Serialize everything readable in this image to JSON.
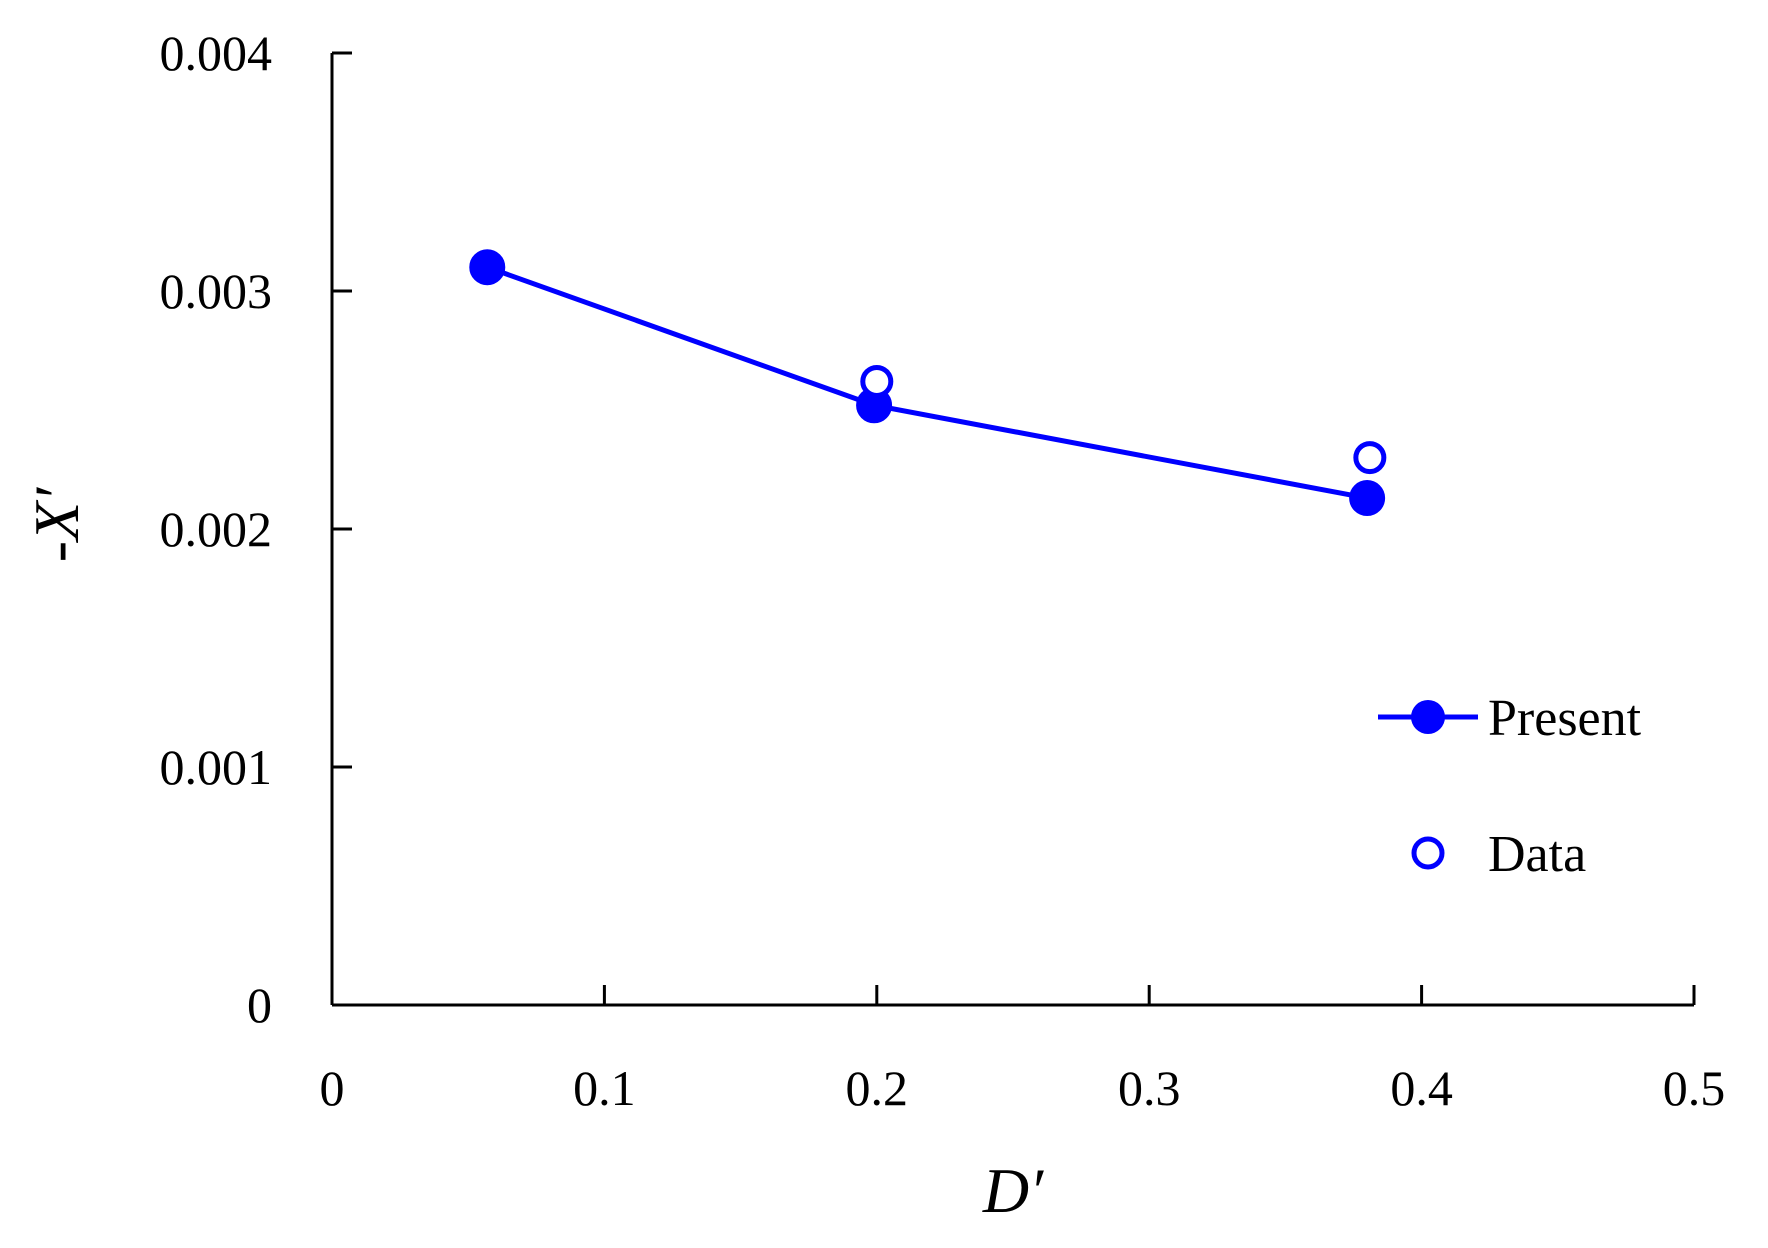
{
  "chart_data": {
    "type": "line",
    "title": "",
    "xlabel": "D′",
    "ylabel": "-X′",
    "xlim": [
      0,
      0.5
    ],
    "ylim": [
      0,
      0.004
    ],
    "x_ticks": [
      0,
      0.1,
      0.2,
      0.3,
      0.4,
      0.5
    ],
    "x_tick_labels": [
      "0",
      "0.1",
      "0.2",
      "0.3",
      "0.4",
      "0.5"
    ],
    "y_ticks": [
      0,
      0.001,
      0.002,
      0.003,
      0.004
    ],
    "y_tick_labels": [
      "0",
      "0.001",
      "0.002",
      "0.003",
      "0.004"
    ],
    "grid": false,
    "legend_position": "right",
    "series": [
      {
        "name": "Present",
        "style": "line-filled-marker",
        "color": "#0000ff",
        "x": [
          0.057,
          0.199,
          0.38
        ],
        "y": [
          0.0031,
          0.00252,
          0.00213
        ]
      },
      {
        "name": "Data",
        "style": "open-marker",
        "color": "#0000ff",
        "x": [
          0.2,
          0.381
        ],
        "y": [
          0.00262,
          0.0023
        ]
      }
    ]
  }
}
